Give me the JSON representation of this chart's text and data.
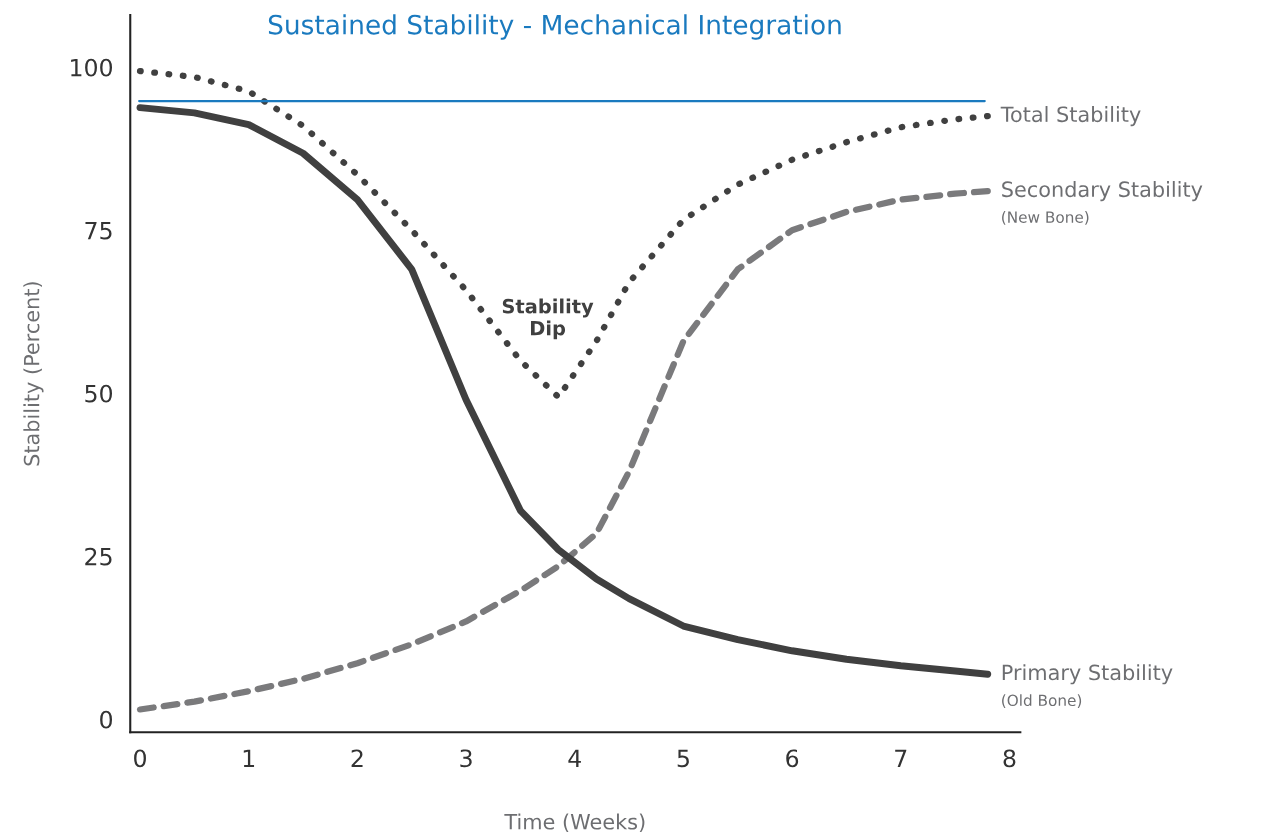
{
  "chart_data": {
    "type": "line",
    "title": "Sustained Stability - Mechanical Integration",
    "xlabel": "Time (Weeks)",
    "ylabel": "Stability (Percent)",
    "x": [
      0,
      0.5,
      1,
      1.5,
      2,
      2.5,
      3,
      3.5,
      3.85,
      4.2,
      4.5,
      5,
      5.5,
      6,
      6.5,
      7,
      7.5,
      7.8
    ],
    "series": [
      {
        "name": "Total Stability",
        "color": "#404040",
        "line_style": "dotted",
        "values": [
          99.4,
          98.5,
          96.3,
          91,
          83.5,
          75,
          65.8,
          55,
          49.4,
          58,
          67,
          76.6,
          82,
          85.8,
          88.5,
          90.8,
          92,
          92.5
        ]
      },
      {
        "name": "Secondary Stability\n(New Bone)",
        "color": "#7a7a7c",
        "line_style": "dashed",
        "values": [
          1.5,
          2.7,
          4.3,
          6.2,
          8.6,
          11.5,
          15,
          19.7,
          23.5,
          28.5,
          38,
          58,
          69,
          75,
          77.8,
          79.7,
          80.6,
          81
        ]
      },
      {
        "name": "Primary Stability\n(Old Bone)",
        "color": "#404040",
        "line_style": "solid",
        "values": [
          93.8,
          93,
          91.2,
          86.8,
          79.7,
          69,
          49,
          32,
          26,
          21.5,
          18.5,
          14.3,
          12.2,
          10.5,
          9.2,
          8.2,
          7.4,
          6.9
        ]
      }
    ],
    "ref_lines": [
      {
        "axis": "y",
        "value": 94.8,
        "color": "#1a7abf",
        "line_style": "solid"
      }
    ],
    "annotations": [
      {
        "text": "Stability\nDip",
        "x": 3.85,
        "y": 49.4
      }
    ],
    "xlim": [
      -0.09,
      8.1
    ],
    "ylim": [
      -2,
      108
    ],
    "xticks": [
      0,
      1,
      2,
      3,
      4,
      5,
      6,
      7,
      8
    ],
    "yticks": [
      0,
      25,
      50,
      75,
      100
    ],
    "grid": false,
    "legend": false,
    "marker": "none"
  }
}
